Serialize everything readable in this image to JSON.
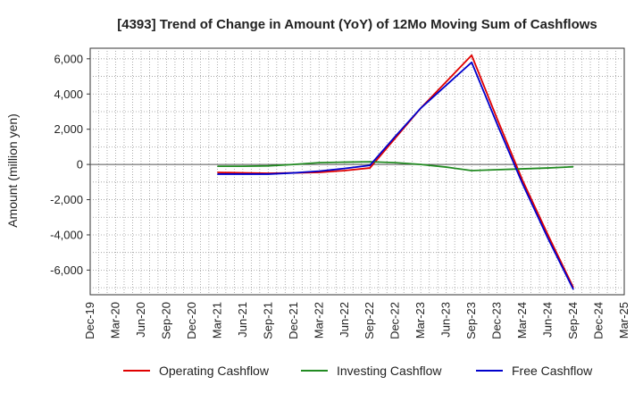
{
  "chart_data": {
    "type": "line",
    "title": "[4393]  Trend of Change in Amount (YoY) of 12Mo Moving Sum of Cashflows",
    "xlabel": "",
    "ylabel": "Amount (million yen)",
    "ylim": [
      -7400,
      6600
    ],
    "yticks": [
      6000,
      4000,
      2000,
      0,
      -2000,
      -4000,
      -6000
    ],
    "ytick_labels": [
      "6,000",
      "4,000",
      "2,000",
      "0",
      "-2,000",
      "-4,000",
      "-6,000"
    ],
    "categories": [
      "Dec-19",
      "Mar-20",
      "Jun-20",
      "Sep-20",
      "Dec-20",
      "Mar-21",
      "Jun-21",
      "Sep-21",
      "Dec-21",
      "Mar-22",
      "Jun-22",
      "Sep-22",
      "Dec-22",
      "Mar-23",
      "Jun-23",
      "Sep-23",
      "Dec-23",
      "Mar-24",
      "Jun-24",
      "Sep-24",
      "Dec-24",
      "Mar-25"
    ],
    "grid": true,
    "legend_position": "bottom",
    "series": [
      {
        "name": "Operating Cashflow",
        "color": "#e00000",
        "values": [
          null,
          null,
          null,
          null,
          null,
          -450,
          -480,
          -500,
          -480,
          -450,
          -350,
          -200,
          1500,
          3200,
          4700,
          6200,
          2600,
          -900,
          -4000,
          -7000,
          null,
          null
        ]
      },
      {
        "name": "Investing Cashflow",
        "color": "#228b22",
        "values": [
          null,
          null,
          null,
          null,
          null,
          -100,
          -100,
          -80,
          0,
          100,
          130,
          150,
          100,
          0,
          -150,
          -350,
          -300,
          -250,
          -200,
          -130,
          null,
          null
        ]
      },
      {
        "name": "Free Cashflow",
        "color": "#0000cc",
        "values": [
          null,
          null,
          null,
          null,
          null,
          -550,
          -550,
          -550,
          -480,
          -380,
          -230,
          -50,
          1600,
          3200,
          4500,
          5800,
          2300,
          -1100,
          -4200,
          -7100,
          null,
          null
        ]
      }
    ]
  }
}
